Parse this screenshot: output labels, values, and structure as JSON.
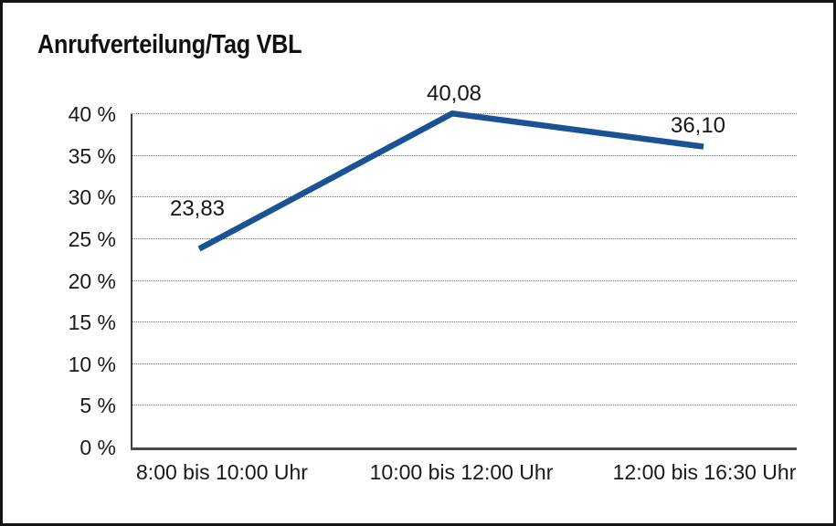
{
  "figure": {
    "title": "Anrufverteilung/Tag VBL"
  },
  "chart_data": {
    "type": "line",
    "title": "Anrufverteilung/Tag VBL",
    "categories": [
      "8:00 bis 10:00 Uhr",
      "10:00 bis 12:00 Uhr",
      "12:00 bis 16:30 Uhr"
    ],
    "values": [
      23.83,
      40.08,
      36.1
    ],
    "data_labels": [
      "23,83",
      "40,08",
      "36,10"
    ],
    "y_ticks": [
      "0 %",
      "5 %",
      "10 %",
      "15 %",
      "20 %",
      "25 %",
      "30 %",
      "35 %",
      "40 %"
    ],
    "y_tick_values": [
      0,
      5,
      10,
      15,
      20,
      25,
      30,
      35,
      40
    ],
    "ylim": [
      0,
      40
    ],
    "y_tick_step": 5,
    "xlabel": "",
    "ylabel": "",
    "legend": "none",
    "grid": "horizontal-dotted",
    "line_color": "#1A5293",
    "axis_color": "#3c3c3c",
    "text_color": "#1a1a1a",
    "background_color": "#ffffff"
  }
}
